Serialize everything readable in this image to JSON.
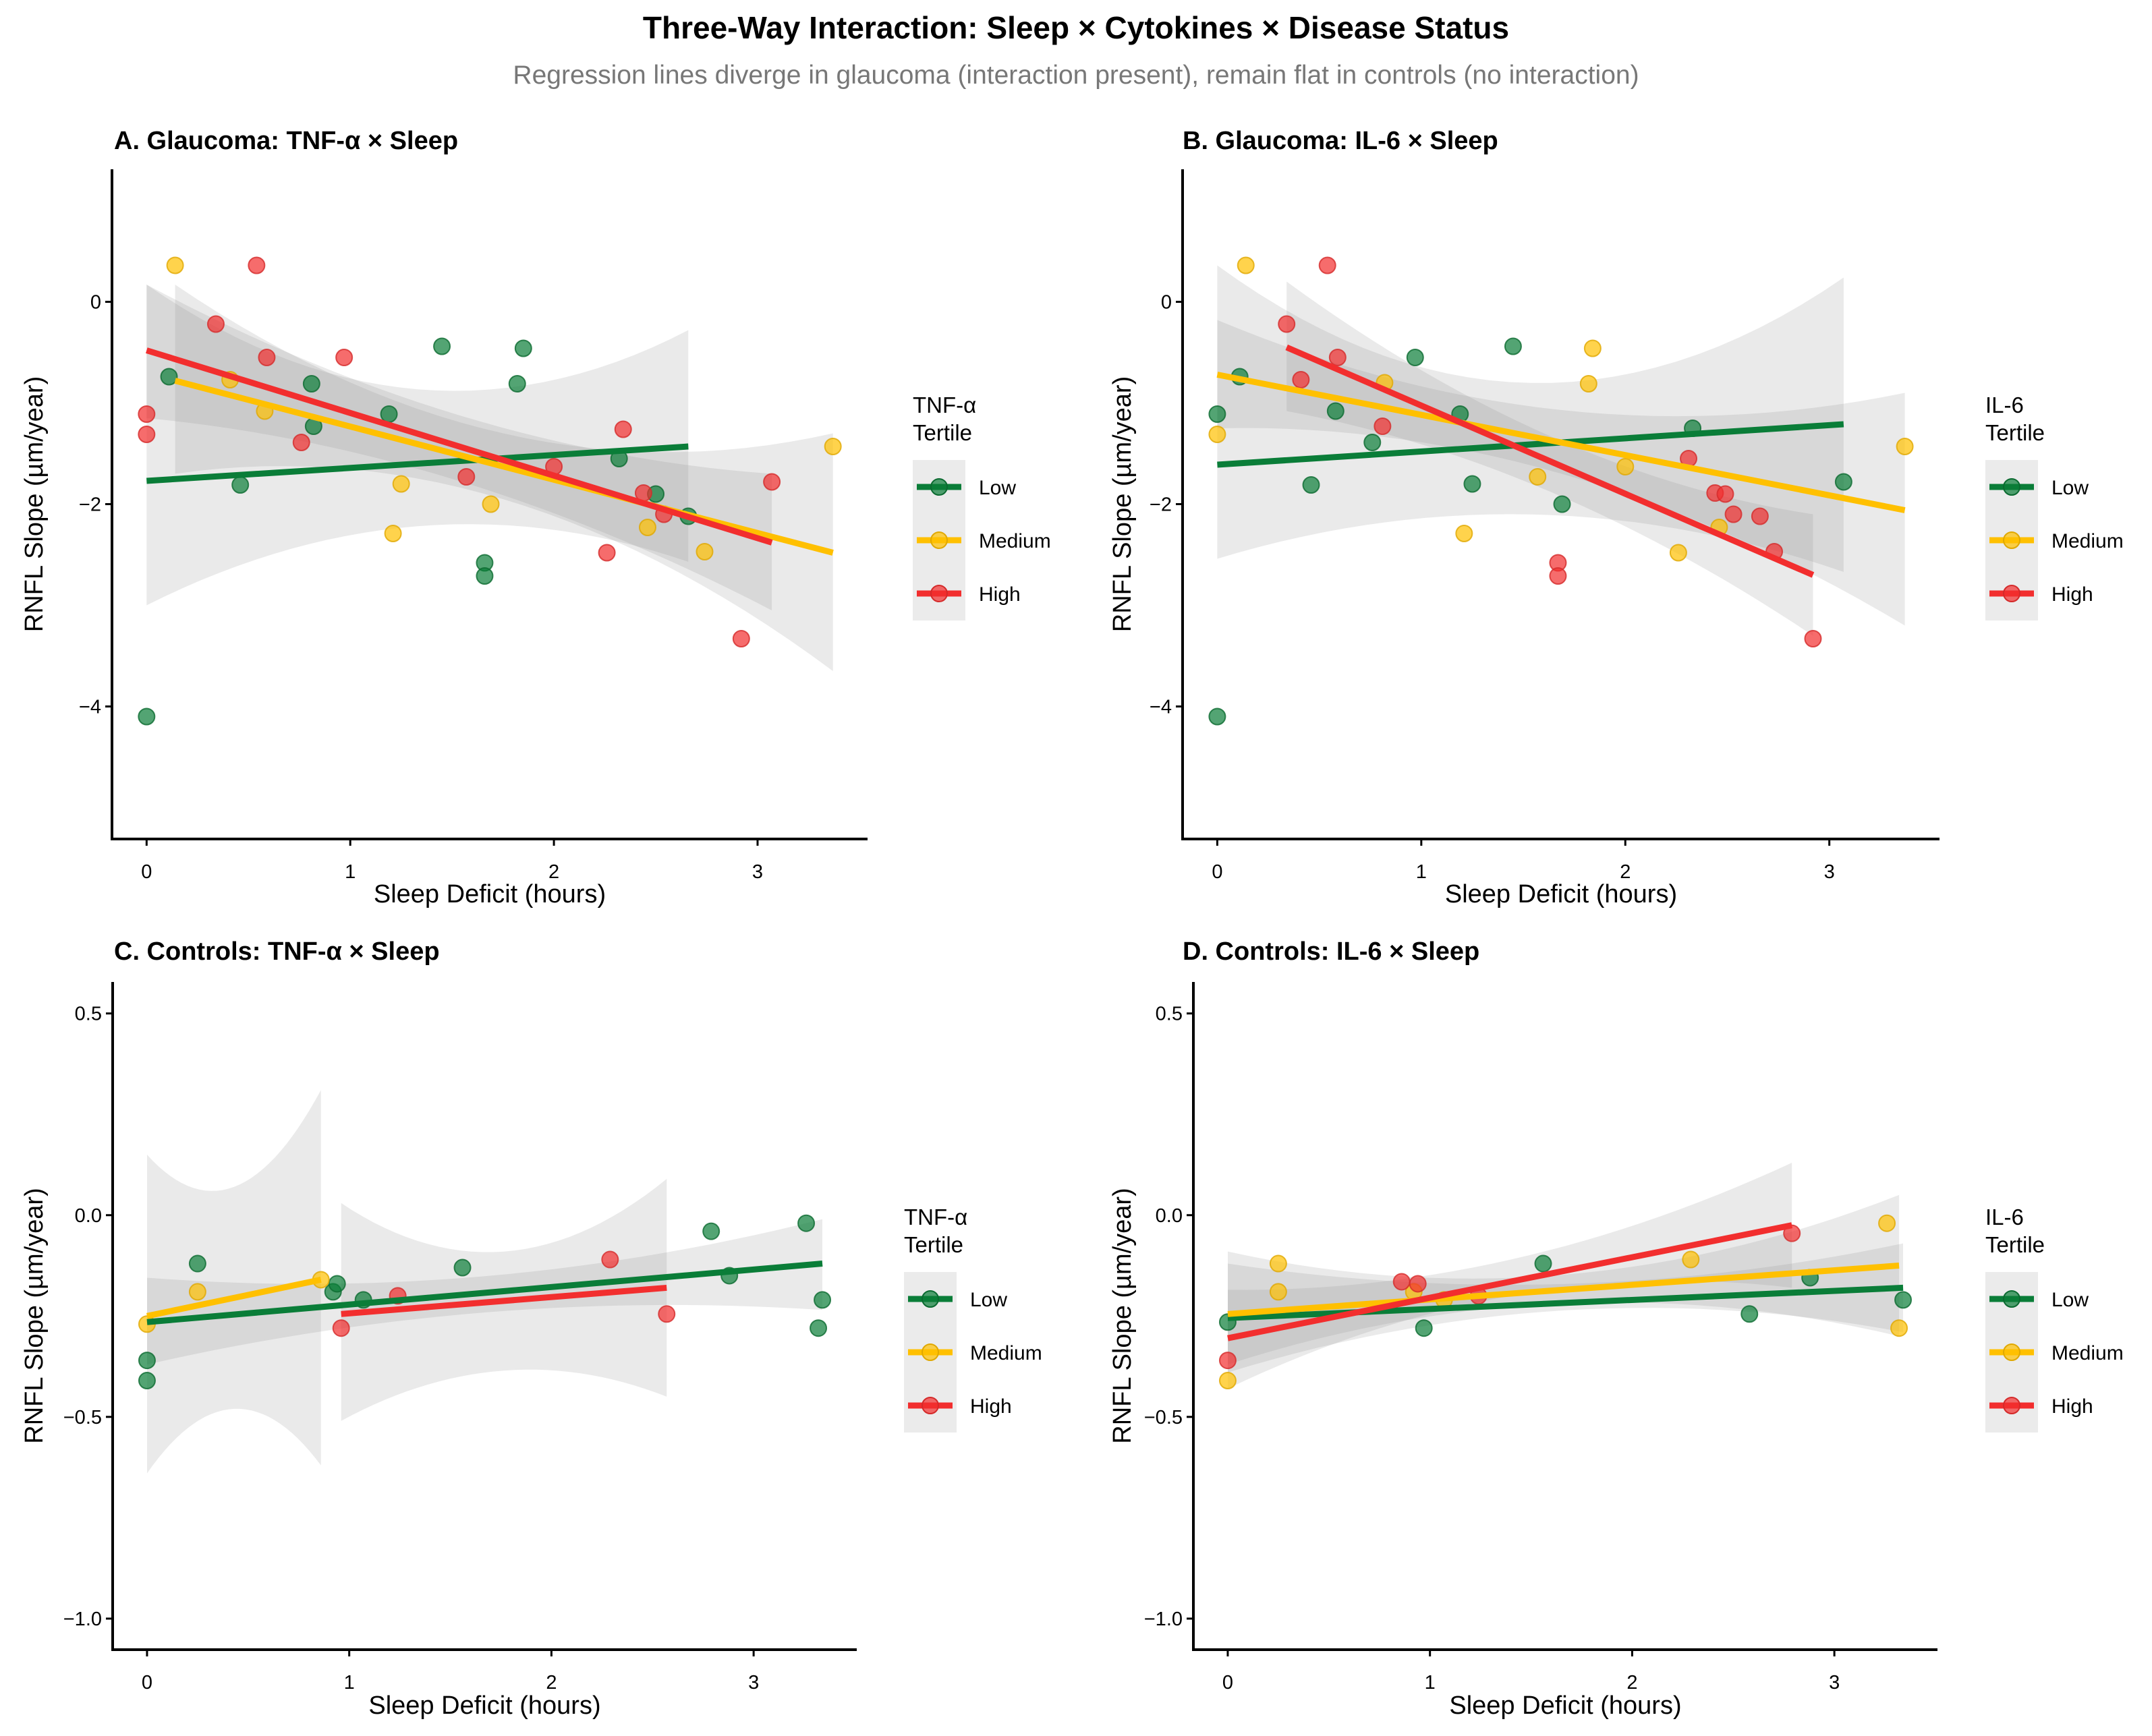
{
  "title": "Three-Way Interaction: Sleep × Cytokines × Disease Status",
  "subtitle": "Regression lines diverge in glaucoma (interaction present), remain flat in controls (no interaction)",
  "colors": {
    "Low": "#0A7D38",
    "Medium": "#FFC000",
    "High": "#F22E2E",
    "ribbon": "#8c8c8c"
  },
  "chart_data": [
    {
      "type": "scatter",
      "title": "A. Glaucoma: TNF-α × Sleep",
      "xlabel": "Sleep Deficit (hours)",
      "ylabel": "RNFL Slope (µm/year)",
      "xlim": [
        -0.17,
        3.54
      ],
      "ylim": [
        -5.31,
        1.31
      ],
      "xticks": [
        0,
        1,
        2,
        3
      ],
      "xtick_labels": [
        "0",
        "1",
        "2",
        "3"
      ],
      "yticks": [
        0,
        -2,
        -4
      ],
      "ytick_labels": [
        "0",
        "−2",
        "−4"
      ],
      "legend": {
        "title_line1": "TNF-α",
        "title_line2": "Tertile",
        "entries": [
          "Low",
          "Medium",
          "High"
        ],
        "placement": "right"
      },
      "series": [
        {
          "name": "Low",
          "points": [
            [
              0,
              -4.1
            ],
            [
              0.11,
              -0.74
            ],
            [
              0.46,
              -1.81
            ],
            [
              0.81,
              -0.81
            ],
            [
              0.82,
              -1.23
            ],
            [
              1.19,
              -1.11
            ],
            [
              1.45,
              -0.44
            ],
            [
              1.66,
              -2.58
            ],
            [
              1.66,
              -2.71
            ],
            [
              1.82,
              -0.81
            ],
            [
              1.85,
              -0.46
            ],
            [
              2.32,
              -1.55
            ],
            [
              2.5,
              -1.9
            ],
            [
              2.66,
              -2.12
            ]
          ],
          "fit": [
            [
              0,
              -1.77
            ],
            [
              2.66,
              -1.43
            ]
          ],
          "ci": [
            [
              0,
              -3.0,
              0.17
            ],
            [
              1.5,
              -2.2,
              -0.88
            ],
            [
              2.66,
              -2.57,
              -0.28
            ]
          ]
        },
        {
          "name": "Medium",
          "points": [
            [
              0.14,
              0.36
            ],
            [
              0.41,
              -0.77
            ],
            [
              0.58,
              -1.08
            ],
            [
              1.21,
              -2.29
            ],
            [
              1.25,
              -1.8
            ],
            [
              1.69,
              -2.0
            ],
            [
              2.46,
              -2.23
            ],
            [
              2.74,
              -2.47
            ],
            [
              3.37,
              -1.43
            ]
          ],
          "fit": [
            [
              0.14,
              -0.78
            ],
            [
              3.37,
              -2.48
            ]
          ],
          "ci": [
            [
              0.14,
              -1.7,
              0.17
            ],
            [
              1.75,
              -1.95,
              -1.3
            ],
            [
              3.37,
              -3.65,
              -1.3
            ]
          ]
        },
        {
          "name": "High",
          "points": [
            [
              0,
              -1.11
            ],
            [
              0,
              -1.31
            ],
            [
              0.34,
              -0.22
            ],
            [
              0.54,
              0.36
            ],
            [
              0.59,
              -0.55
            ],
            [
              0.76,
              -1.39
            ],
            [
              0.97,
              -0.55
            ],
            [
              1.57,
              -1.73
            ],
            [
              2.0,
              -1.63
            ],
            [
              2.26,
              -2.48
            ],
            [
              2.34,
              -1.26
            ],
            [
              2.44,
              -1.89
            ],
            [
              2.54,
              -2.1
            ],
            [
              2.92,
              -3.33
            ],
            [
              3.07,
              -1.78
            ]
          ],
          "fit": [
            [
              0,
              -0.48
            ],
            [
              3.07,
              -2.38
            ]
          ],
          "ci": [
            [
              0,
              -1.15,
              0.17
            ],
            [
              1.5,
              -1.75,
              -1.1
            ],
            [
              3.07,
              -3.05,
              -1.7
            ]
          ]
        }
      ]
    },
    {
      "type": "scatter",
      "title": "B. Glaucoma: IL-6 × Sleep",
      "xlabel": "Sleep Deficit (hours)",
      "ylabel": "RNFL Slope (µm/year)",
      "xlim": [
        -0.17,
        3.54
      ],
      "ylim": [
        -5.31,
        1.31
      ],
      "xticks": [
        0,
        1,
        2,
        3
      ],
      "xtick_labels": [
        "0",
        "1",
        "2",
        "3"
      ],
      "yticks": [
        0,
        -2,
        -4
      ],
      "ytick_labels": [
        "0",
        "−2",
        "−4"
      ],
      "legend": {
        "title_line1": "IL-6",
        "title_line2": "Tertile",
        "entries": [
          "Low",
          "Medium",
          "High"
        ],
        "placement": "right"
      },
      "series": [
        {
          "name": "Low",
          "points": [
            [
              0,
              -1.11
            ],
            [
              0,
              -4.1
            ],
            [
              0.11,
              -0.74
            ],
            [
              0.46,
              -1.81
            ],
            [
              0.58,
              -1.08
            ],
            [
              0.76,
              -1.39
            ],
            [
              0.97,
              -0.55
            ],
            [
              1.19,
              -1.11
            ],
            [
              1.25,
              -1.8
            ],
            [
              1.45,
              -0.44
            ],
            [
              1.69,
              -2.0
            ],
            [
              2.33,
              -1.25
            ],
            [
              3.07,
              -1.78
            ]
          ],
          "fit": [
            [
              0,
              -1.61
            ],
            [
              3.07,
              -1.21
            ]
          ],
          "ci": [
            [
              0,
              -2.54,
              0.36
            ],
            [
              1.5,
              -2.1,
              -0.8
            ],
            [
              3.07,
              -2.67,
              0.24
            ]
          ]
        },
        {
          "name": "Medium",
          "points": [
            [
              0,
              -1.31
            ],
            [
              0.14,
              0.36
            ],
            [
              0.82,
              -0.8
            ],
            [
              1.21,
              -2.29
            ],
            [
              1.57,
              -1.73
            ],
            [
              1.82,
              -0.81
            ],
            [
              1.84,
              -0.46
            ],
            [
              2.0,
              -1.63
            ],
            [
              2.26,
              -2.48
            ],
            [
              2.46,
              -2.23
            ],
            [
              3.37,
              -1.43
            ]
          ],
          "fit": [
            [
              0,
              -0.72
            ],
            [
              3.37,
              -2.06
            ]
          ],
          "ci": [
            [
              0,
              -1.25,
              -0.18
            ],
            [
              1.6,
              -1.65,
              -1.05
            ],
            [
              3.37,
              -3.2,
              -0.9
            ]
          ]
        },
        {
          "name": "High",
          "points": [
            [
              0.34,
              -0.22
            ],
            [
              0.41,
              -0.77
            ],
            [
              0.54,
              0.36
            ],
            [
              0.59,
              -0.55
            ],
            [
              0.81,
              -1.23
            ],
            [
              1.67,
              -2.58
            ],
            [
              1.67,
              -2.71
            ],
            [
              2.31,
              -1.55
            ],
            [
              2.44,
              -1.89
            ],
            [
              2.49,
              -1.9
            ],
            [
              2.53,
              -2.1
            ],
            [
              2.66,
              -2.12
            ],
            [
              2.73,
              -2.47
            ],
            [
              2.92,
              -3.33
            ]
          ],
          "fit": [
            [
              0.34,
              -0.45
            ],
            [
              2.92,
              -2.7
            ]
          ],
          "ci": [
            [
              0.34,
              -1.08,
              0.2
            ],
            [
              1.6,
              -1.85,
              -1.3
            ],
            [
              2.92,
              -3.3,
              -2.1
            ]
          ]
        }
      ]
    },
    {
      "type": "scatter",
      "title": "C. Controls: TNF-α × Sleep",
      "xlabel": "Sleep Deficit (hours)",
      "ylabel": "RNFL Slope (µm/year)",
      "xlim": [
        -0.17,
        3.51
      ],
      "ylim": [
        -1.077,
        0.578
      ],
      "xticks": [
        0,
        1,
        2,
        3
      ],
      "xtick_labels": [
        "0",
        "1",
        "2",
        "3"
      ],
      "yticks": [
        0.5,
        0,
        -0.5,
        -1
      ],
      "ytick_labels": [
        "0.5",
        "0.0",
        "−0.5",
        "−1.0"
      ],
      "legend": {
        "title_line1": "TNF-α",
        "title_line2": "Tertile",
        "entries": [
          "Low",
          "Medium",
          "High"
        ],
        "placement": "right"
      },
      "series": [
        {
          "name": "Low",
          "points": [
            [
              0,
              -0.36
            ],
            [
              0,
              -0.41
            ],
            [
              0.25,
              -0.12
            ],
            [
              0.92,
              -0.19
            ],
            [
              0.94,
              -0.17
            ],
            [
              1.07,
              -0.21
            ],
            [
              1.56,
              -0.13
            ],
            [
              2.79,
              -0.04
            ],
            [
              2.88,
              -0.15
            ],
            [
              3.26,
              -0.02
            ],
            [
              3.32,
              -0.28
            ],
            [
              3.34,
              -0.21
            ]
          ],
          "fit": [
            [
              0,
              -0.265
            ],
            [
              3.34,
              -0.12
            ]
          ],
          "ci": [
            [
              0,
              -0.37,
              -0.155
            ],
            [
              1.7,
              -0.24,
              -0.15
            ],
            [
              3.34,
              -0.235,
              -0.01
            ]
          ]
        },
        {
          "name": "Medium",
          "points": [
            [
              0,
              -0.27
            ],
            [
              0.25,
              -0.19
            ],
            [
              0.86,
              -0.16
            ]
          ],
          "fit": [
            [
              0,
              -0.25
            ],
            [
              0.86,
              -0.16
            ]
          ],
          "ci": [
            [
              0,
              -0.64,
              0.15
            ],
            [
              0.43,
              -0.48,
              0.07
            ],
            [
              0.86,
              -0.62,
              0.31
            ]
          ]
        },
        {
          "name": "High",
          "points": [
            [
              0.96,
              -0.28
            ],
            [
              1.24,
              -0.2
            ],
            [
              2.29,
              -0.11
            ],
            [
              2.57,
              -0.245
            ]
          ],
          "fit": [
            [
              0.96,
              -0.245
            ],
            [
              2.57,
              -0.18
            ]
          ],
          "ci": [
            [
              0.96,
              -0.51,
              0.03
            ],
            [
              1.77,
              -0.385,
              -0.09
            ],
            [
              2.57,
              -0.45,
              0.09
            ]
          ]
        }
      ]
    },
    {
      "type": "scatter",
      "title": "D. Controls: IL-6 × Sleep",
      "xlabel": "Sleep Deficit (hours)",
      "ylabel": "RNFL Slope (µm/year)",
      "xlim": [
        -0.17,
        3.51
      ],
      "ylim": [
        -1.077,
        0.578
      ],
      "xticks": [
        0,
        1,
        2,
        3
      ],
      "xtick_labels": [
        "0",
        "1",
        "2",
        "3"
      ],
      "yticks": [
        0.5,
        0,
        -0.5,
        -1
      ],
      "ytick_labels": [
        "0.5",
        "0.0",
        "−0.5",
        "−1.0"
      ],
      "legend": {
        "title_line1": "IL-6",
        "title_line2": "Tertile",
        "entries": [
          "Low",
          "Medium",
          "High"
        ],
        "placement": "right"
      },
      "series": [
        {
          "name": "Low",
          "points": [
            [
              0,
              -0.265
            ],
            [
              0.97,
              -0.28
            ],
            [
              1.56,
              -0.12
            ],
            [
              2.58,
              -0.245
            ],
            [
              2.88,
              -0.155
            ],
            [
              3.34,
              -0.21
            ]
          ],
          "fit": [
            [
              0,
              -0.255
            ],
            [
              3.34,
              -0.18
            ]
          ],
          "ci": [
            [
              0,
              -0.39,
              -0.12
            ],
            [
              1.7,
              -0.235,
              -0.17
            ],
            [
              3.34,
              -0.29,
              -0.07
            ]
          ]
        },
        {
          "name": "Medium",
          "points": [
            [
              0,
              -0.41
            ],
            [
              0.25,
              -0.12
            ],
            [
              0.25,
              -0.19
            ],
            [
              0.92,
              -0.19
            ],
            [
              1.07,
              -0.21
            ],
            [
              2.29,
              -0.11
            ],
            [
              3.26,
              -0.02
            ],
            [
              3.32,
              -0.28
            ]
          ],
          "fit": [
            [
              0,
              -0.245
            ],
            [
              3.32,
              -0.125
            ]
          ],
          "ci": [
            [
              0,
              -0.37,
              -0.09
            ],
            [
              1.6,
              -0.22,
              -0.15
            ],
            [
              3.32,
              -0.3,
              0.05
            ]
          ]
        },
        {
          "name": "High",
          "points": [
            [
              0,
              -0.36
            ],
            [
              0.86,
              -0.165
            ],
            [
              0.94,
              -0.17
            ],
            [
              1.24,
              -0.2
            ],
            [
              2.79,
              -0.045
            ]
          ],
          "fit": [
            [
              0,
              -0.305
            ],
            [
              2.79,
              -0.025
            ]
          ],
          "ci": [
            [
              0,
              -0.43,
              -0.185
            ],
            [
              1.4,
              -0.2,
              -0.11
            ],
            [
              2.79,
              -0.18,
              0.13
            ]
          ]
        }
      ]
    }
  ]
}
